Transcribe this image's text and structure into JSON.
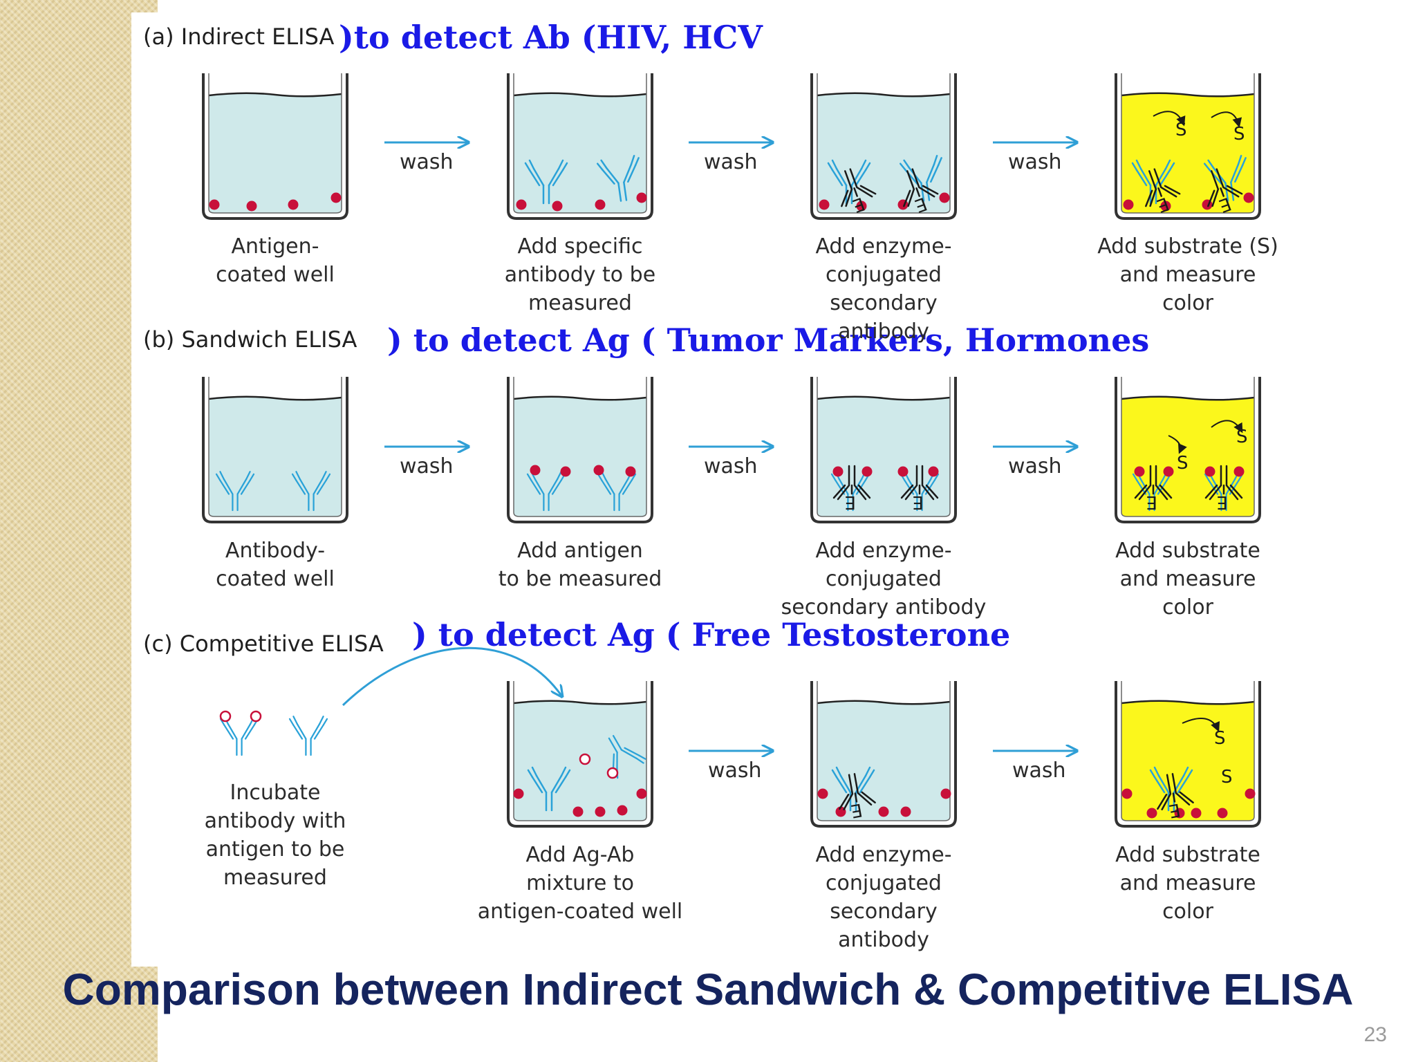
{
  "sections": {
    "a": {
      "title": "(a) Indirect ELISA",
      "note": ")to detect Ab (HIV, HCV",
      "steps": [
        [
          "Antigen-",
          "coated well"
        ],
        [
          "Add specific",
          "antibody to be",
          "measured"
        ],
        [
          "Add enzyme-",
          "conjugated",
          "secondary",
          "antibody"
        ],
        [
          "Add substrate (S)",
          "and measure",
          "color"
        ]
      ]
    },
    "b": {
      "title": "(b) Sandwich ELISA",
      "note": ")  to detect Ag ( Tumor Markers, Hormones",
      "steps": [
        [
          "Antibody-",
          "coated well"
        ],
        [
          "Add antigen",
          "to be measured"
        ],
        [
          "Add enzyme-",
          "conjugated",
          "secondary antibody"
        ],
        [
          "Add substrate",
          "and measure",
          "color"
        ]
      ]
    },
    "c": {
      "title": "(c) Competitive ELISA",
      "note": ")  to detect Ag ( Free Testosterone",
      "steps": [
        [
          "Incubate",
          "antibody with",
          "antigen to be",
          "measured"
        ],
        [
          "Add Ag-Ab",
          "mixture to",
          "antigen-coated well"
        ],
        [
          "Add enzyme-",
          "conjugated",
          "secondary",
          "antibody"
        ],
        [
          "Add substrate",
          "and measure",
          "color"
        ]
      ]
    }
  },
  "wash_label": "wash",
  "enzyme_letter": "E",
  "substrate_letter": "S",
  "colors": {
    "well_fill": "#cfe9ea",
    "substrate_fill": "#fbf71c",
    "antibody": "#2aa2d8",
    "antigen": "#c8103a",
    "arrow": "#2f9fd6",
    "note_text": "#1a1ae6",
    "title_text": "#15245e"
  },
  "footer": {
    "title": "Comparison between Indirect Sandwich & Competitive ELISA",
    "page_number": "23"
  }
}
